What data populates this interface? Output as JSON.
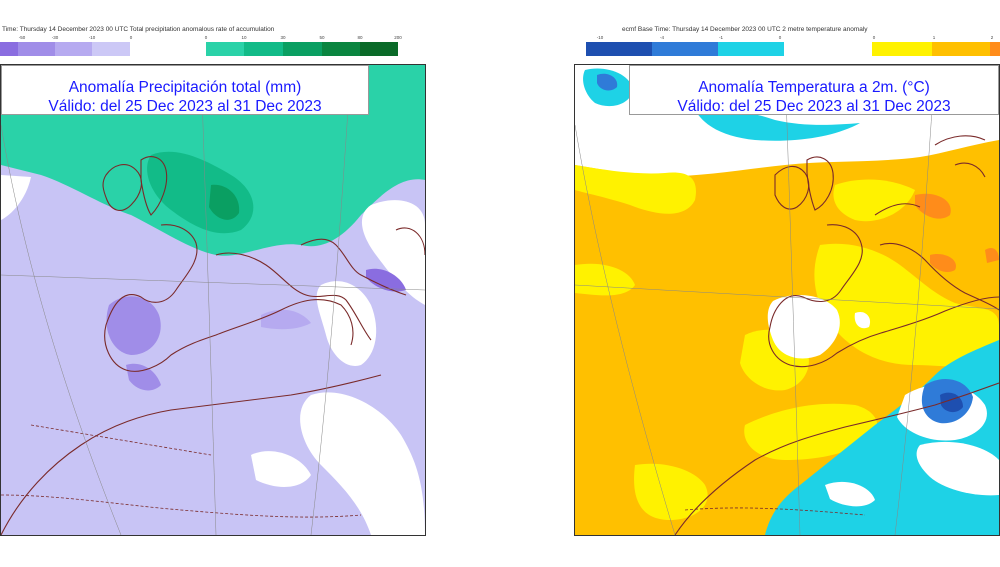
{
  "left_panel": {
    "header": "Time: Thursday 14 December 2023 00 UTC Total precipitation anomalous rate of accumulation",
    "colorbar": {
      "negative": [
        "#8a6de0",
        "#a08de8",
        "#b6aaf0",
        "#ccc8f6"
      ],
      "positive": [
        "#2ad2a8",
        "#12bb88",
        "#0a9f62",
        "#0a8540",
        "#0a6a28"
      ],
      "tick_labels_negative": [
        "-50",
        "-30",
        "-10",
        "0"
      ],
      "tick_labels_positive": [
        "0",
        "10",
        "30",
        "50",
        "80",
        "200"
      ]
    },
    "title_line1": "Anomalía Precipitación total (mm)",
    "title_line2": "Válido: del 25 Dec 2023 al 31 Dec 2023"
  },
  "right_panel": {
    "header": "ecmf  Base Time: Thursday 14 December 2023 00 UTC 2 metre temperature anomaly",
    "colorbar": {
      "negative": [
        "#1e4fb0",
        "#2f7bd8",
        "#1ed2e6"
      ],
      "positive": [
        "#fff200",
        "#ffc000",
        "#ff8c1a"
      ],
      "tick_labels_negative": [
        "-10",
        "-4",
        "-1",
        "0"
      ],
      "tick_labels_positive": [
        "0",
        "1",
        "2"
      ]
    },
    "title_line1": "Anomalía Temperatura a 2m. (°C)",
    "title_line2": "Válido: del 25 Dec 2023 al 31 Dec 2023"
  }
}
